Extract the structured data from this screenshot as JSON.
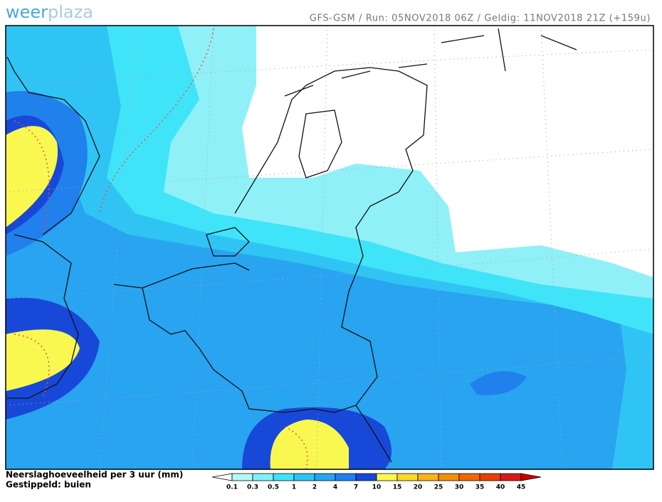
{
  "header": {
    "logo_left": "weer",
    "logo_right": "plaza",
    "run_info": "GFS-GSM / Run: 05NOV2018 06Z / Geldig: 11NOV2018 21Z (+159u)"
  },
  "legend": {
    "title": "Neerslaghoeveelheid per 3 uur (mm)",
    "subtitle": "Gestippeld: buien",
    "ticks": [
      0.1,
      0.3,
      0.5,
      1,
      2,
      4,
      7,
      10,
      15,
      20,
      25,
      30,
      35,
      40,
      45
    ],
    "colors": [
      "#ffffff",
      "#b4f8f8",
      "#7ef0f8",
      "#40e4f8",
      "#30c4f4",
      "#28a4f0",
      "#2080ec",
      "#1848d8",
      "#f8f850",
      "#f8d828",
      "#f8b418",
      "#f09008",
      "#f06800",
      "#e84000",
      "#d81818",
      "#d00000"
    ]
  }
}
